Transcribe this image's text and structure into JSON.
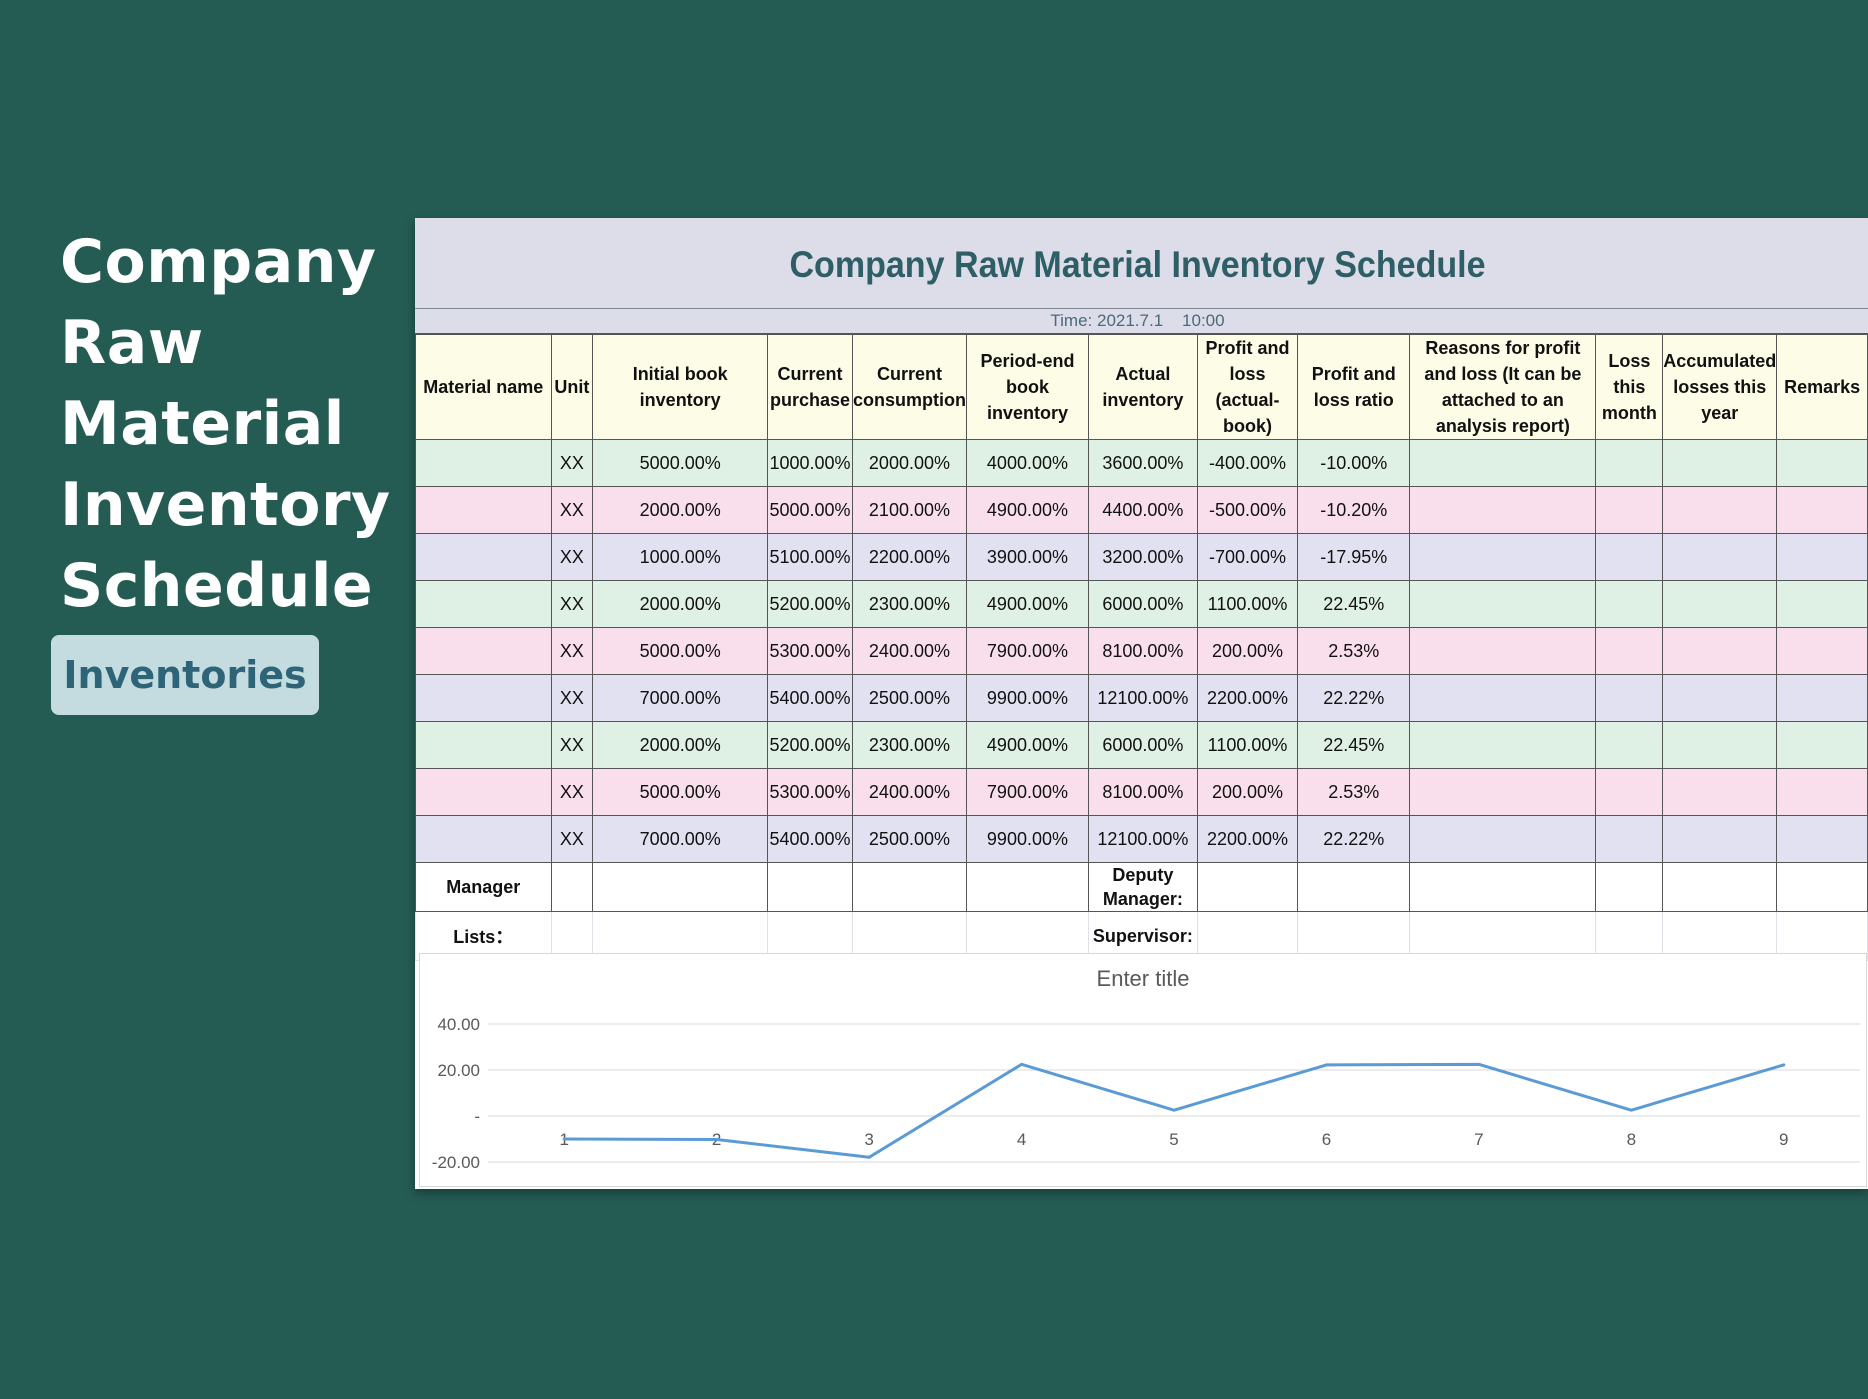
{
  "side": {
    "title_lines": [
      "Company",
      "Raw",
      "Material",
      "Inventory",
      "Schedule"
    ],
    "badge": "Inventories"
  },
  "sheet": {
    "title": "Company Raw Material Inventory Schedule",
    "time": "Time: 2021.7.1    10:00",
    "headers": [
      "Material name",
      "Unit",
      "Initial book inventory",
      "Current purchase",
      "Current consumption",
      "Period-end book inventory",
      "Actual inventory",
      "Profit and loss (actual-book)",
      "Profit and loss ratio",
      "Reasons for profit and loss (It can be attached to an analysis report)",
      "Loss this month",
      "Accumulated losses this year",
      "Remarks"
    ],
    "rows": [
      [
        "",
        "XX",
        "5000.00%",
        "1000.00%",
        "2000.00%",
        "4000.00%",
        "3600.00%",
        "-400.00%",
        "-10.00%",
        "",
        "",
        "",
        ""
      ],
      [
        "",
        "XX",
        "2000.00%",
        "5000.00%",
        "2100.00%",
        "4900.00%",
        "4400.00%",
        "-500.00%",
        "-10.20%",
        "",
        "",
        "",
        ""
      ],
      [
        "",
        "XX",
        "1000.00%",
        "5100.00%",
        "2200.00%",
        "3900.00%",
        "3200.00%",
        "-700.00%",
        "-17.95%",
        "",
        "",
        "",
        ""
      ],
      [
        "",
        "XX",
        "2000.00%",
        "5200.00%",
        "2300.00%",
        "4900.00%",
        "6000.00%",
        "1100.00%",
        "22.45%",
        "",
        "",
        "",
        ""
      ],
      [
        "",
        "XX",
        "5000.00%",
        "5300.00%",
        "2400.00%",
        "7900.00%",
        "8100.00%",
        "200.00%",
        "2.53%",
        "",
        "",
        "",
        ""
      ],
      [
        "",
        "XX",
        "7000.00%",
        "5400.00%",
        "2500.00%",
        "9900.00%",
        "12100.00%",
        "2200.00%",
        "22.22%",
        "",
        "",
        "",
        ""
      ],
      [
        "",
        "XX",
        "2000.00%",
        "5200.00%",
        "2300.00%",
        "4900.00%",
        "6000.00%",
        "1100.00%",
        "22.45%",
        "",
        "",
        "",
        ""
      ],
      [
        "",
        "XX",
        "5000.00%",
        "5300.00%",
        "2400.00%",
        "7900.00%",
        "8100.00%",
        "200.00%",
        "2.53%",
        "",
        "",
        "",
        ""
      ],
      [
        "",
        "XX",
        "7000.00%",
        "5400.00%",
        "2500.00%",
        "9900.00%",
        "12100.00%",
        "2200.00%",
        "22.22%",
        "",
        "",
        "",
        ""
      ]
    ],
    "row_colors": [
      "#dff0e4",
      "#f9dfec",
      "#e2e1f1"
    ],
    "signatures": {
      "manager": "Manager",
      "deputy_manager": "Deputy Manager:",
      "lists": "Lists：",
      "supervisor": "Supervisor:"
    }
  },
  "chart_data": {
    "type": "line",
    "title": "Enter title",
    "x": [
      1,
      2,
      3,
      4,
      5,
      6,
      7,
      8,
      9
    ],
    "series": [
      {
        "values": [
          -10.0,
          -10.2,
          -17.95,
          22.45,
          2.53,
          22.22,
          22.45,
          2.53,
          22.22
        ],
        "color": "#5b9bd5"
      }
    ],
    "y_ticks": [
      "40.00",
      "20.00",
      "-",
      "-20.00"
    ],
    "ylim": [
      -20,
      40
    ],
    "grid": true,
    "legend": false
  }
}
